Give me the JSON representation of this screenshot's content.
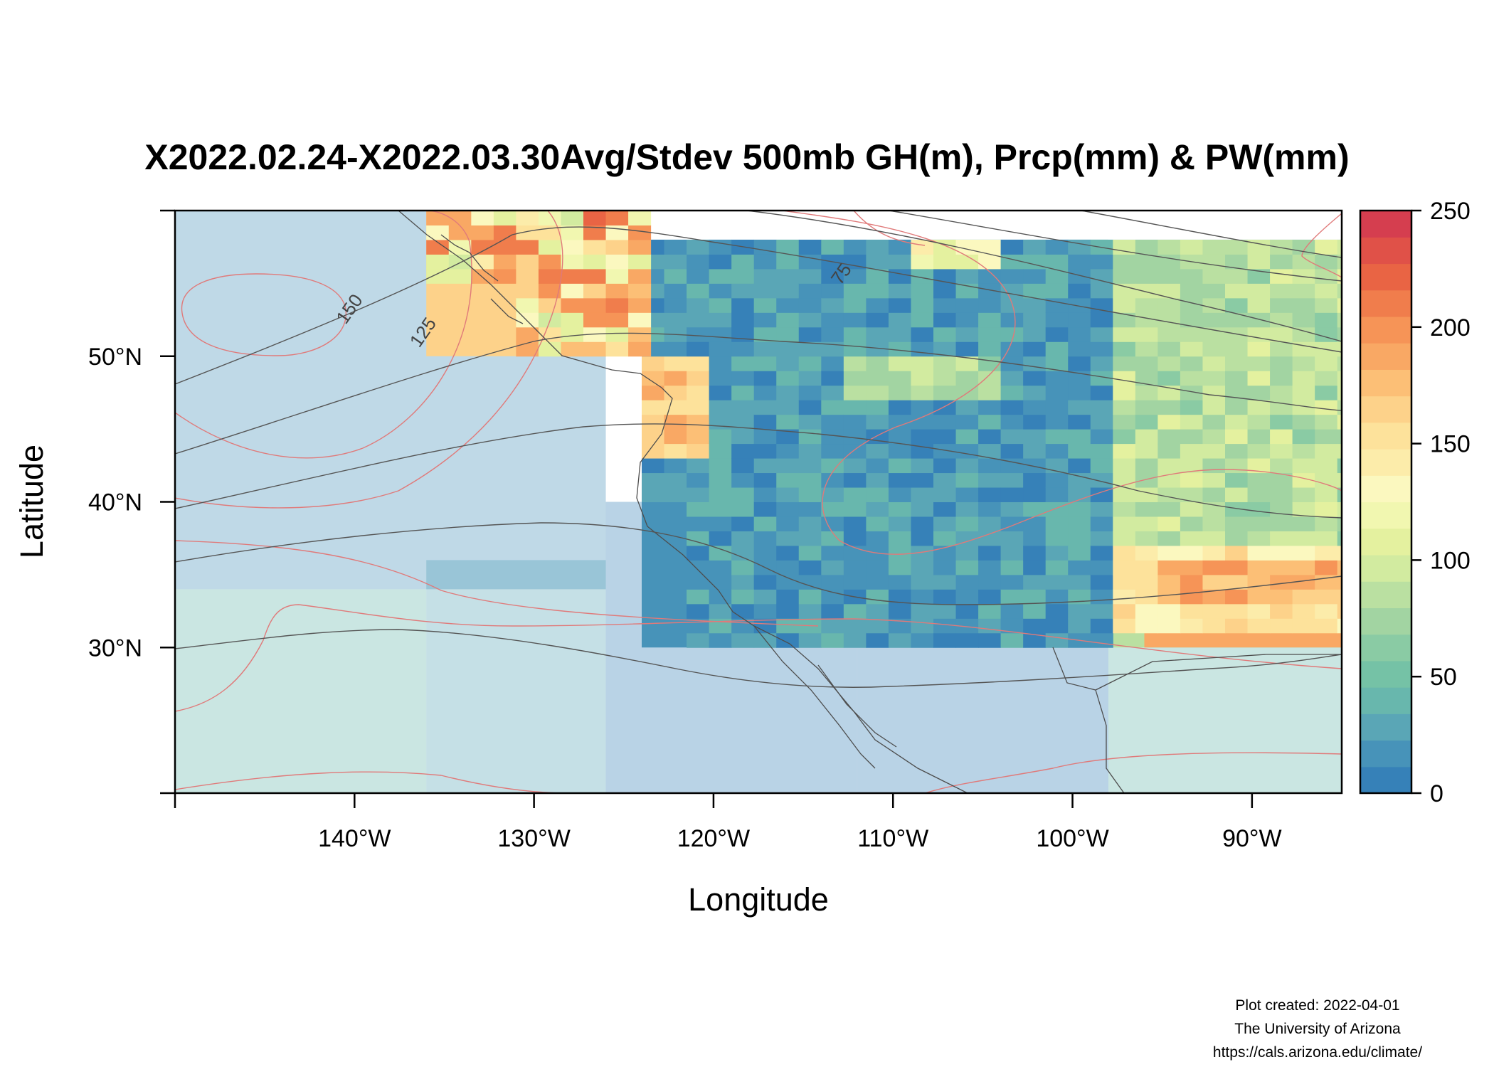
{
  "chart_data": {
    "type": "heatmap",
    "title": "X2022.02.24-X2022.03.30Avg/Stdev 500mb GH(m), Prcp(mm) & PW(mm)",
    "xlabel": "Longitude",
    "ylabel": "Latitude",
    "xlim": [
      -150,
      -85
    ],
    "ylim": [
      20,
      60
    ],
    "x_ticks": [
      {
        "value": -140,
        "label": "140°W"
      },
      {
        "value": -130,
        "label": "130°W"
      },
      {
        "value": -120,
        "label": "120°W"
      },
      {
        "value": -110,
        "label": "110°W"
      },
      {
        "value": -100,
        "label": "100°W"
      },
      {
        "value": -90,
        "label": "90°W"
      }
    ],
    "y_ticks": [
      {
        "value": 30,
        "label": "30°N"
      },
      {
        "value": 40,
        "label": "40°N"
      },
      {
        "value": 50,
        "label": "50°N"
      }
    ],
    "colorbar": {
      "min": 0,
      "max": 250,
      "ticks": [
        {
          "value": 0,
          "label": "0"
        },
        {
          "value": 50,
          "label": "50"
        },
        {
          "value": 100,
          "label": "100"
        },
        {
          "value": 150,
          "label": "150"
        },
        {
          "value": 200,
          "label": "200"
        },
        {
          "value": 250,
          "label": "250"
        }
      ],
      "colors": [
        "#3681b8",
        "#4793b9",
        "#5aa6b6",
        "#68b7ad",
        "#75c2a6",
        "#8acba4",
        "#a2d4a2",
        "#bae0a1",
        "#d2eba0",
        "#e4f19f",
        "#f1f7b0",
        "#fbf8bf",
        "#fcecaa",
        "#fde29b",
        "#fdd28a",
        "#fcbf76",
        "#f9a864",
        "#f69457",
        "#f07d4c",
        "#e96444",
        "#e05148",
        "#d53e4f"
      ]
    },
    "contour_labels": [
      {
        "text": "150",
        "lon": -140,
        "lat": 53.0
      },
      {
        "text": "125",
        "lon": -135.9,
        "lat": 51.4
      },
      {
        "text": "75",
        "lon": -112.6,
        "lat": 55.4
      }
    ],
    "precip_regions": [
      {
        "name": "pacific-sw",
        "lon": [
          -150,
          -136
        ],
        "lat": [
          20,
          34
        ],
        "value": 42
      },
      {
        "name": "pacific-mid",
        "lon": [
          -136,
          -126
        ],
        "lat": [
          20,
          36
        ],
        "value": 25
      },
      {
        "name": "pacific-north",
        "lon": [
          -150,
          -126
        ],
        "lat": [
          34,
          60
        ],
        "value": 12
      },
      {
        "name": "pacific-coastal",
        "lon": [
          -126,
          -112
        ],
        "lat": [
          20,
          40
        ],
        "value": 5
      },
      {
        "name": "mexico-interior",
        "lon": [
          -112,
          -98
        ],
        "lat": [
          20,
          30
        ],
        "value": 2
      },
      {
        "name": "western-us",
        "lon": [
          -124,
          -98
        ],
        "lat": [
          30,
          58
        ],
        "value": 18
      },
      {
        "name": "canada-east",
        "lon": [
          -110,
          -85
        ],
        "lat": [
          50,
          58
        ],
        "value": 20
      },
      {
        "name": "central-us",
        "lon": [
          -98,
          -85
        ],
        "lat": [
          30,
          50
        ],
        "value": 90
      },
      {
        "name": "south-central-us",
        "lon": [
          -96,
          -85
        ],
        "lat": [
          30,
          37
        ],
        "value": 190
      },
      {
        "name": "gulf-of-mexico",
        "lon": [
          -98,
          -85
        ],
        "lat": [
          20,
          30
        ],
        "value": 40
      },
      {
        "name": "bc-coast",
        "lon": [
          -136,
          -124
        ],
        "lat": [
          50,
          60
        ],
        "value": 165
      },
      {
        "name": "pnw-coast",
        "lon": [
          -124,
          -121
        ],
        "lat": [
          42,
          50
        ],
        "value": 200
      }
    ]
  },
  "credits": {
    "line1": "Plot created: 2022-04-01",
    "line2": "The University of Arizona",
    "line3": "https://cals.arizona.edu/climate/"
  }
}
